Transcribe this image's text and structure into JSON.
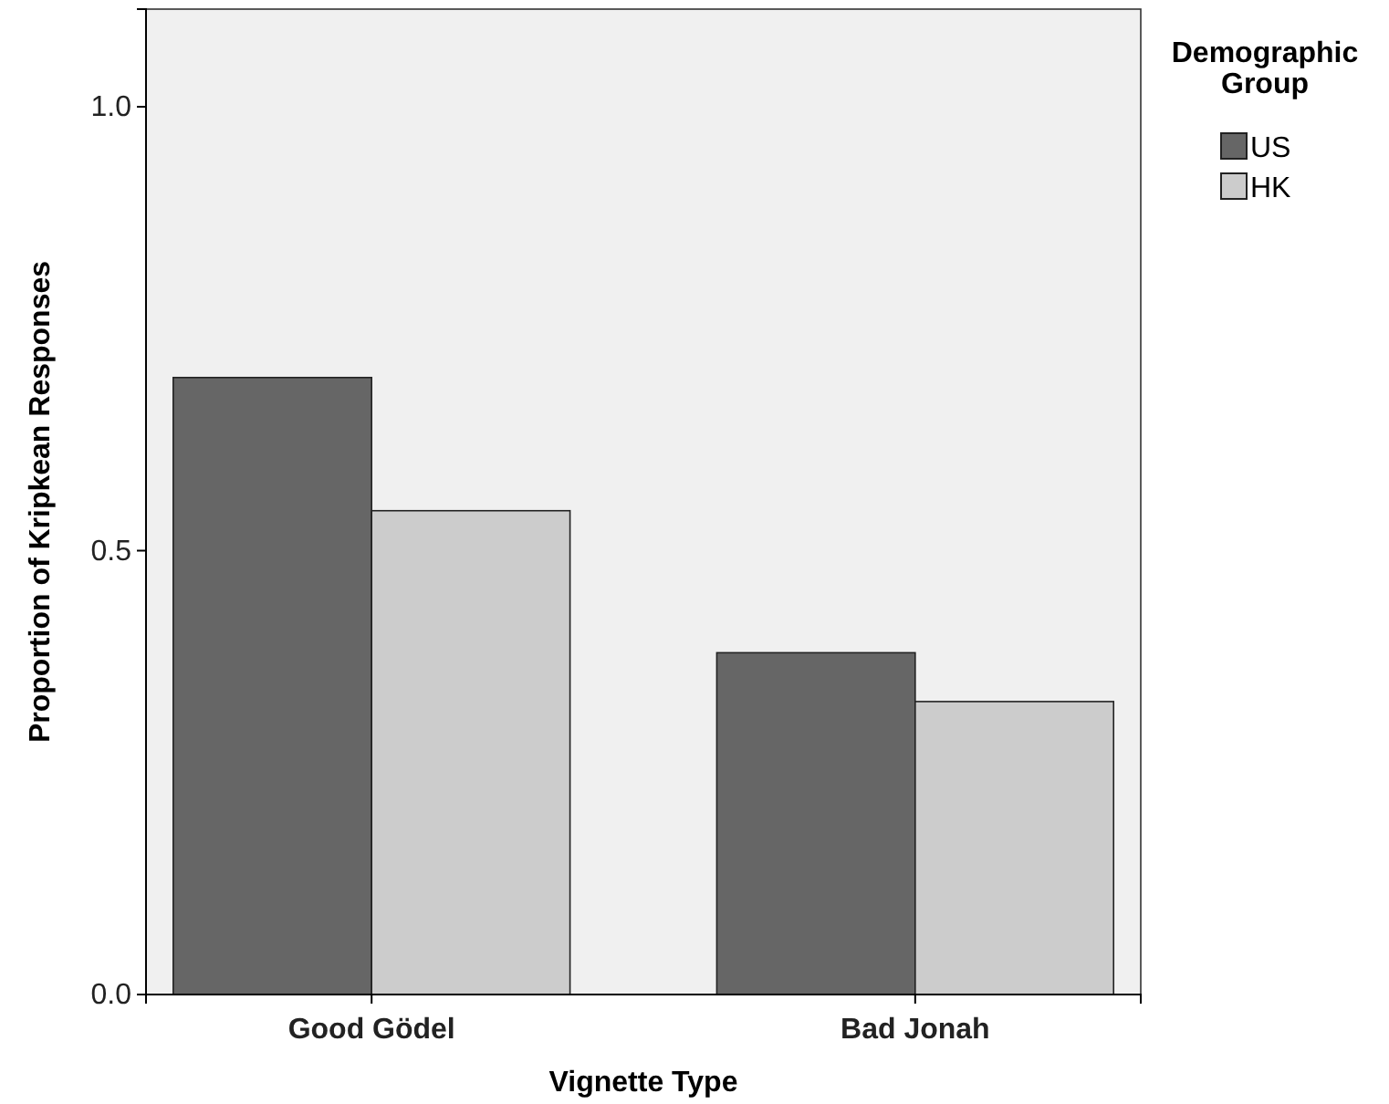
{
  "chart_data": {
    "type": "bar",
    "xlabel": "Vignette Type",
    "ylabel": "Proportion of Kripkean Responses",
    "legend_title": "Demographic Group",
    "categories": [
      "Good Gödel",
      "Bad Jonah"
    ],
    "series": [
      {
        "name": "US",
        "color": "#666666",
        "values": [
          0.695,
          0.385
        ]
      },
      {
        "name": "HK",
        "color": "#cccccc",
        "values": [
          0.545,
          0.33
        ]
      }
    ],
    "ylim": [
      0,
      1.11
    ],
    "yticks": [
      {
        "value": 0,
        "label": "0.0"
      },
      {
        "value": 0.5,
        "label": "0.5"
      },
      {
        "value": 1,
        "label": "1.0"
      }
    ],
    "grid": false,
    "legend": "top right"
  }
}
